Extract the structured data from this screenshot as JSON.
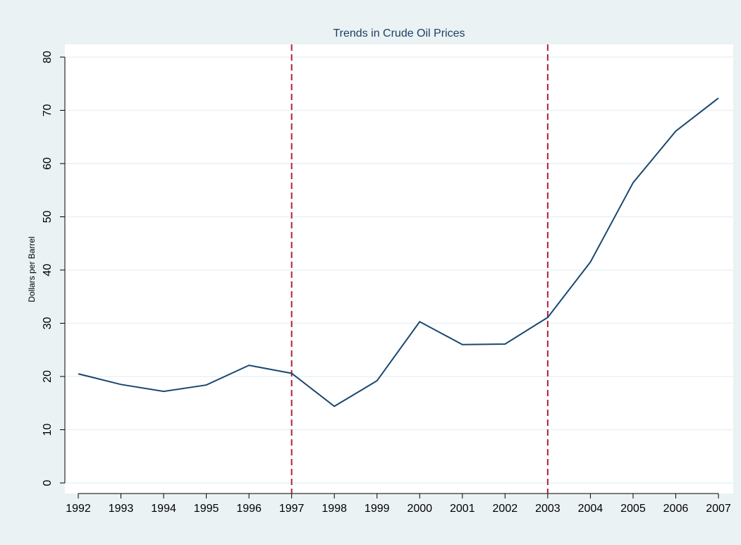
{
  "chart_data": {
    "type": "line",
    "title": "Trends in Crude Oil Prices",
    "y_label": "Dollars per Barrel",
    "x": [
      1992,
      1993,
      1994,
      1995,
      1996,
      1997,
      1998,
      1999,
      2000,
      2001,
      2002,
      2003,
      2004,
      2005,
      2006,
      2007
    ],
    "values": [
      20.5,
      18.5,
      17.2,
      18.4,
      22.1,
      20.6,
      14.4,
      19.2,
      30.3,
      26.0,
      26.1,
      31.1,
      41.5,
      56.4,
      66.1,
      72.3
    ],
    "color": "#1a476f",
    "xlim": [
      1992,
      2007
    ],
    "xticks": [
      1992,
      1993,
      1994,
      1995,
      1996,
      1997,
      1998,
      1999,
      2000,
      2001,
      2002,
      2003,
      2004,
      2005,
      2006,
      2007
    ],
    "ylim": [
      0,
      80
    ],
    "yticks": [
      0,
      10,
      20,
      30,
      40,
      50,
      60,
      70,
      80
    ],
    "xlines": [
      1997,
      2003
    ],
    "xline_color": "#b01f3c",
    "grid": true
  }
}
